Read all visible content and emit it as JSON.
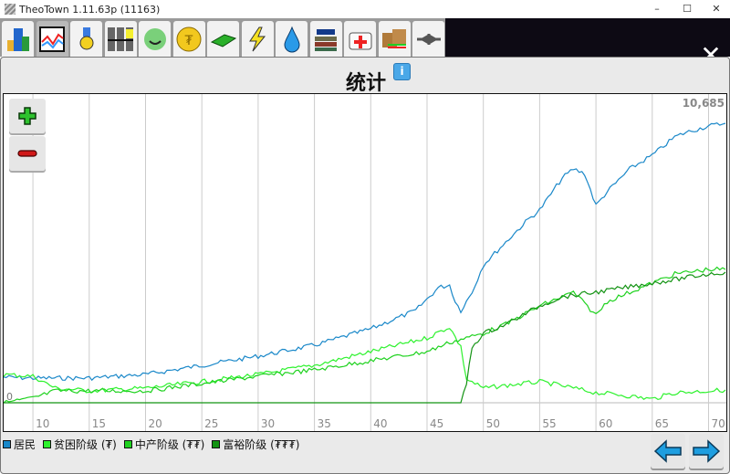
{
  "window": {
    "title": "TheoTown 1.11.63p (11163)",
    "minimize": "–",
    "maximize": "☐",
    "close": "✕"
  },
  "toolbar": {
    "tabs": [
      {
        "icon": "city-icon",
        "active": false
      },
      {
        "icon": "statistics-chart-icon",
        "active": true
      },
      {
        "icon": "medal-icon",
        "active": false
      },
      {
        "icon": "budget-bars-icon",
        "active": false
      },
      {
        "icon": "happiness-face-icon",
        "active": false
      },
      {
        "icon": "coin-icon",
        "active": false
      },
      {
        "icon": "money-icon",
        "active": false
      },
      {
        "icon": "power-bolt-icon",
        "active": false
      },
      {
        "icon": "water-drop-icon",
        "active": false
      },
      {
        "icon": "education-books-icon",
        "active": false
      },
      {
        "icon": "health-kit-icon",
        "active": false
      },
      {
        "icon": "trade-boxes-icon",
        "active": false
      },
      {
        "icon": "airplane-icon",
        "active": false
      }
    ],
    "close_label": "✕"
  },
  "page": {
    "title": "统计",
    "info_label": "i"
  },
  "colors": {
    "residents": "#1a88c9",
    "poor": "#2ef22e",
    "middle": "#1fd21f",
    "rich": "#139313"
  },
  "chart_data": {
    "type": "line",
    "title": "",
    "xlim": [
      7.4,
      71.5
    ],
    "ylim": [
      0,
      10685
    ],
    "xticks": [
      10,
      15,
      20,
      25,
      30,
      35,
      40,
      45,
      50,
      55,
      60,
      65,
      70
    ],
    "ytick_labels": {
      "min": "0",
      "max": "10,685"
    },
    "grid": "vertical",
    "legend": "bottom-left",
    "series": [
      {
        "name": "居民",
        "color": "#1a88c9",
        "x": [
          7.4,
          10,
          15,
          20,
          25,
          30,
          35,
          40,
          44,
          46,
          47,
          47.5,
          48,
          49,
          50,
          52,
          54,
          55,
          57,
          58,
          59,
          60,
          61,
          63,
          65,
          66,
          67,
          68,
          70,
          71.5
        ],
        "y": [
          978,
          943,
          943,
          1082,
          1431,
          1781,
          2200,
          2828,
          3527,
          4400,
          4504,
          3876,
          3527,
          4225,
          5272,
          6145,
          7018,
          7367,
          8589,
          8938,
          8764,
          7542,
          8066,
          8938,
          9462,
          9811,
          10160,
          10335,
          10580,
          10685
        ]
      },
      {
        "name": "贫困阶级 (₮)",
        "color": "#2ef22e",
        "x": [
          7.4,
          10,
          12,
          15,
          20,
          25,
          30,
          35,
          40,
          45,
          47,
          48,
          48.5,
          50,
          55,
          56,
          58,
          60,
          62,
          65,
          67,
          70,
          71.5
        ],
        "y": [
          1082,
          1013,
          559,
          454,
          559,
          803,
          1082,
          1432,
          1955,
          2479,
          2898,
          2130,
          908,
          559,
          803,
          733,
          559,
          384,
          314,
          140,
          384,
          454,
          489
        ]
      },
      {
        "name": "中产阶级 (₮₮)",
        "color": "#1fd21f",
        "x": [
          7.4,
          10,
          12,
          20,
          25,
          30,
          35,
          40,
          45,
          47,
          50,
          52,
          55,
          57,
          58,
          60,
          61,
          63,
          65,
          67,
          70,
          71.5
        ],
        "y": [
          0,
          175,
          454,
          454,
          733,
          1013,
          1257,
          1606,
          1955,
          2304,
          2654,
          3003,
          3701,
          4050,
          4225,
          3352,
          3876,
          4225,
          4574,
          4923,
          5098,
          5098
        ]
      },
      {
        "name": "富裕阶级 (₮₮₮)",
        "color": "#139313",
        "x": [
          7.4,
          48,
          48.5,
          49,
          50,
          52,
          55,
          57,
          60,
          65,
          70,
          71.5
        ],
        "y": [
          0,
          0,
          733,
          2130,
          2654,
          3003,
          3701,
          4050,
          4225,
          4574,
          4923,
          4993
        ]
      }
    ]
  },
  "zoom": {
    "in": "zoom-in",
    "out": "zoom-out"
  },
  "nav": {
    "prev": "previous-page",
    "next": "next-page"
  }
}
